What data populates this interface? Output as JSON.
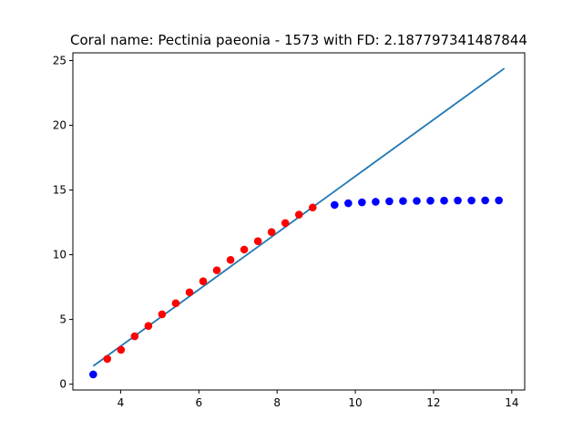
{
  "chart_data": {
    "type": "scatter",
    "title": "Coral name: Pectinia paeonia - 1573 with FD: 2.187797341487844",
    "xlabel": "",
    "ylabel": "",
    "xlim": [
      2.78,
      14.33
    ],
    "ylim": [
      -0.45,
      25.6
    ],
    "xticks": [
      4,
      6,
      8,
      10,
      12,
      14
    ],
    "yticks": [
      0,
      5,
      10,
      15,
      20,
      25
    ],
    "grid": false,
    "colors": {
      "fit_line": "#1f77b4",
      "fit_points": "#ff0000",
      "other_points": "#0000ff"
    },
    "series": [
      {
        "kind": "line",
        "x": [
          3.3,
          13.81
        ],
        "y": [
          1.4,
          24.4
        ]
      },
      {
        "kind": "scatter",
        "color_role": "other_points",
        "x": [
          3.3,
          9.47,
          9.82,
          10.17,
          10.52,
          10.87,
          11.22,
          11.57,
          11.92,
          12.27,
          12.62,
          12.97,
          13.32,
          13.67
        ],
        "y": [
          0.75,
          13.85,
          13.98,
          14.05,
          14.09,
          14.13,
          14.15,
          14.16,
          14.17,
          14.18,
          14.19,
          14.19,
          14.2,
          14.2
        ]
      },
      {
        "kind": "scatter",
        "color_role": "fit_points",
        "x": [
          3.66,
          4.01,
          4.36,
          4.71,
          5.06,
          5.41,
          5.76,
          6.11,
          6.46,
          6.81,
          7.16,
          7.51,
          7.86,
          8.21,
          8.56,
          8.91
        ],
        "y": [
          1.95,
          2.65,
          3.7,
          4.5,
          5.4,
          6.25,
          7.1,
          7.95,
          8.8,
          9.6,
          10.4,
          11.05,
          11.75,
          12.45,
          13.1,
          13.65
        ]
      }
    ]
  }
}
